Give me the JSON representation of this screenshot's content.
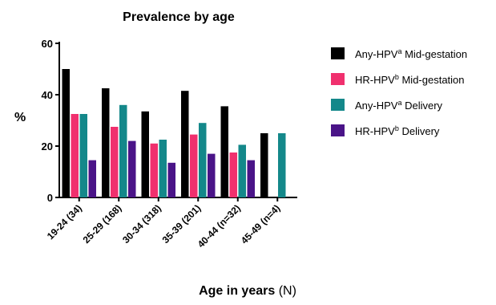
{
  "chart_data": {
    "type": "bar",
    "title": "Prevalence by age",
    "xlabel_bold": "Age in years",
    "xlabel_normal": " (N)",
    "ylabel": "%",
    "ylim": [
      0,
      60
    ],
    "yticks": [
      0,
      20,
      40,
      60
    ],
    "grid": false,
    "legend_position": "right",
    "categories": [
      "19-24 (34)",
      "25-29 (168)",
      "30-34 (318)",
      "35-39 (201)",
      "40-44 (n=32)",
      "45-49 (n=4)"
    ],
    "series": [
      {
        "name": "Any-HPV",
        "sup": "a",
        "suffix": " Mid-gestation",
        "color": "#000000",
        "values": [
          50.0,
          42.5,
          33.5,
          41.5,
          35.5,
          25.0
        ]
      },
      {
        "name": "HR-HPV",
        "sup": "b",
        "suffix": " Mid-gestation",
        "color": "#f0306e",
        "values": [
          32.5,
          27.5,
          21.0,
          24.5,
          17.5,
          null
        ]
      },
      {
        "name": "Any-HPV",
        "sup": "a",
        "suffix": " Delivery",
        "color": "#14888a",
        "values": [
          32.5,
          36.0,
          22.5,
          29.0,
          20.5,
          25.0
        ]
      },
      {
        "name": "HR-HPV",
        "sup": "b",
        "suffix": " Delivery",
        "color": "#4a1488",
        "values": [
          14.5,
          22.0,
          13.5,
          17.0,
          14.5,
          null
        ]
      }
    ]
  }
}
